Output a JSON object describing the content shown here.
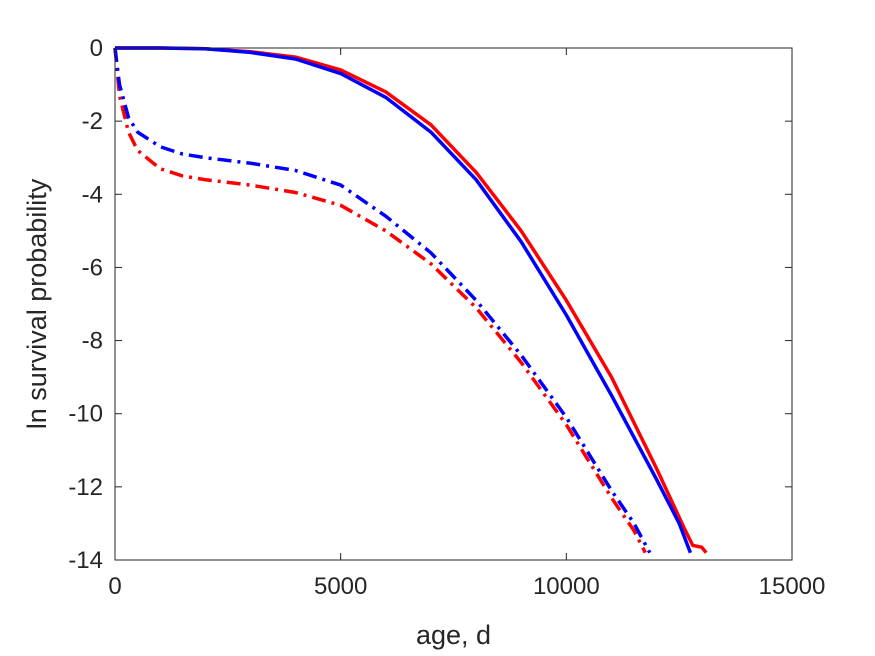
{
  "chart_data": {
    "type": "line",
    "title": "",
    "xlabel": "age, d",
    "ylabel": "ln survival probability",
    "xlim": [
      0,
      15000
    ],
    "ylim": [
      -14,
      0
    ],
    "xticks": [
      0,
      5000,
      10000,
      15000
    ],
    "yticks": [
      0,
      -2,
      -4,
      -6,
      -8,
      -10,
      -12,
      -14
    ],
    "xtick_labels": [
      "0",
      "5000",
      "10000",
      "15000"
    ],
    "ytick_labels": [
      "0",
      "-2",
      "-4",
      "-6",
      "-8",
      "-10",
      "-12",
      "-14"
    ],
    "grid": false,
    "legend": "none",
    "series": [
      {
        "color": "#ff0000",
        "style": "solid",
        "x": [
          0,
          1000,
          2000,
          3000,
          4000,
          5000,
          6000,
          7000,
          8000,
          9000,
          10000,
          11000,
          12000,
          12600,
          12800,
          13000,
          13100
        ],
        "y": [
          0,
          0,
          -0.02,
          -0.1,
          -0.25,
          -0.6,
          -1.2,
          -2.1,
          -3.4,
          -5.0,
          -6.9,
          -9.0,
          -11.5,
          -13.1,
          -13.6,
          -13.65,
          -13.8
        ]
      },
      {
        "color": "#0000ff",
        "style": "solid",
        "x": [
          0,
          1000,
          2000,
          3000,
          4000,
          5000,
          6000,
          7000,
          8000,
          9000,
          10000,
          11000,
          12000,
          12500,
          12750
        ],
        "y": [
          0,
          0,
          -0.02,
          -0.12,
          -0.3,
          -0.7,
          -1.35,
          -2.3,
          -3.6,
          -5.3,
          -7.3,
          -9.5,
          -11.8,
          -13.0,
          -13.8
        ]
      },
      {
        "color": "#ff0000",
        "style": "dashdot",
        "x": [
          0,
          100,
          300,
          500,
          1000,
          1500,
          2000,
          3000,
          4000,
          5000,
          6000,
          7000,
          8000,
          9000,
          10000,
          11000,
          11500,
          11750
        ],
        "y": [
          0,
          -1.3,
          -2.3,
          -2.8,
          -3.3,
          -3.5,
          -3.6,
          -3.75,
          -3.95,
          -4.3,
          -5.0,
          -5.9,
          -7.1,
          -8.6,
          -10.3,
          -12.3,
          -13.2,
          -13.8
        ]
      },
      {
        "color": "#0000ff",
        "style": "dashdot",
        "x": [
          0,
          100,
          300,
          500,
          1000,
          1500,
          2000,
          3000,
          4000,
          5000,
          6000,
          7000,
          8000,
          9000,
          10000,
          11000,
          11500,
          11850
        ],
        "y": [
          0,
          -1.0,
          -1.9,
          -2.3,
          -2.7,
          -2.9,
          -3.0,
          -3.15,
          -3.35,
          -3.75,
          -4.6,
          -5.6,
          -6.9,
          -8.4,
          -10.1,
          -12.1,
          -13.0,
          -13.8
        ]
      }
    ]
  }
}
